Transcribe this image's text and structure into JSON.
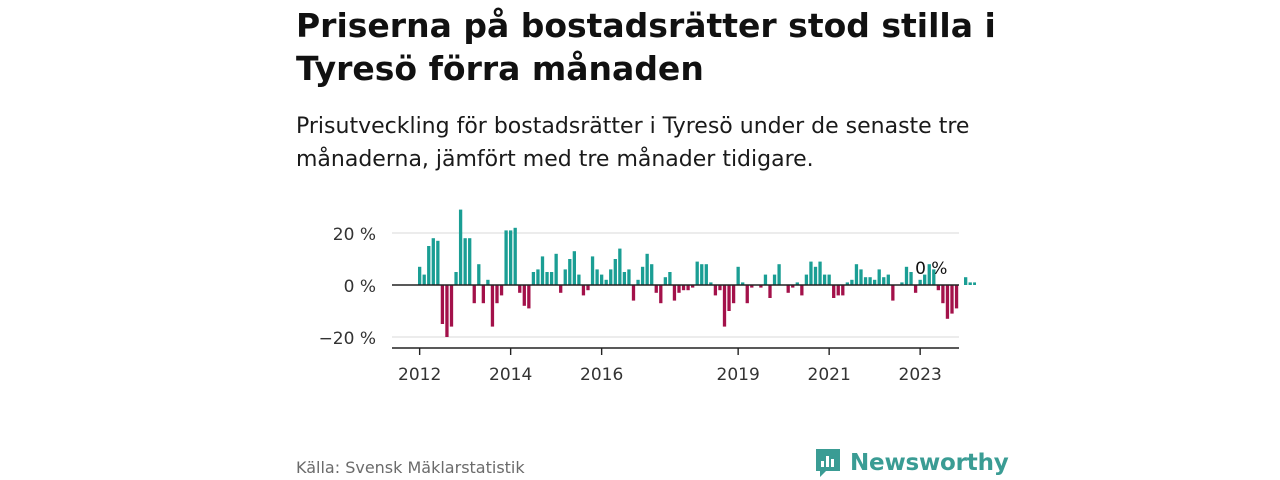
{
  "title": "Priserna på bostadsrätter stod stilla i Tyresö förra månaden",
  "subtitle": "Prisutveckling för bostadsrätter i Tyresö under de senaste tre månaderna, jämfört med tre månader tidigare.",
  "source": "Källa: Svensk Mäklarstatistik",
  "brand": "Newsworthy",
  "colors": {
    "positive": "#1a9e94",
    "negative": "#a3114a",
    "grid": "#d9d9d9",
    "brand": "#3a9c94"
  },
  "chart_data": {
    "type": "bar",
    "title": "Priserna på bostadsrätter stod stilla i Tyresö förra månaden",
    "xlabel": "",
    "ylabel": "",
    "ylim": [
      -24,
      29
    ],
    "y_ticks": [
      20,
      0,
      -20
    ],
    "y_tick_labels": [
      "20 %",
      "0 %",
      "−20 %"
    ],
    "x_ticks": [
      {
        "label": "2012",
        "index": 0
      },
      {
        "label": "2014",
        "index": 20
      },
      {
        "label": "2016",
        "index": 40
      },
      {
        "label": "2019",
        "index": 70
      },
      {
        "label": "2021",
        "index": 90
      },
      {
        "label": "2023",
        "index": 110
      }
    ],
    "annotation": {
      "text": "0 %",
      "index": 112
    },
    "start": "2012-01",
    "values": [
      7,
      4,
      15,
      18,
      17,
      -15,
      -20,
      -16,
      5,
      29,
      18,
      18,
      -7,
      8,
      -7,
      2,
      -16,
      -7,
      -4,
      21,
      21,
      22,
      -3,
      -8,
      -9,
      5,
      6,
      11,
      5,
      5,
      12,
      -3,
      6,
      10,
      13,
      4,
      -4,
      -2,
      11,
      6,
      4,
      2,
      6,
      10,
      14,
      5,
      6,
      -6,
      2,
      7,
      12,
      8,
      -3,
      -7,
      3,
      5,
      -6,
      -3,
      -2,
      -2,
      -1,
      9,
      8,
      8,
      1,
      -4,
      -2,
      -16,
      -10,
      -7,
      7,
      1,
      -7,
      -1,
      0,
      -1,
      4,
      -5,
      4,
      8,
      0,
      -3,
      -1,
      1,
      -4,
      4,
      9,
      7,
      9,
      4,
      4,
      -5,
      -4,
      -4,
      1,
      2,
      8,
      6,
      3,
      3,
      2,
      6,
      3,
      4,
      -6,
      0,
      1,
      7,
      5,
      -3,
      2,
      4,
      8,
      6,
      -2,
      -7,
      -13,
      -11,
      -9,
      0,
      3,
      1,
      1
    ]
  }
}
